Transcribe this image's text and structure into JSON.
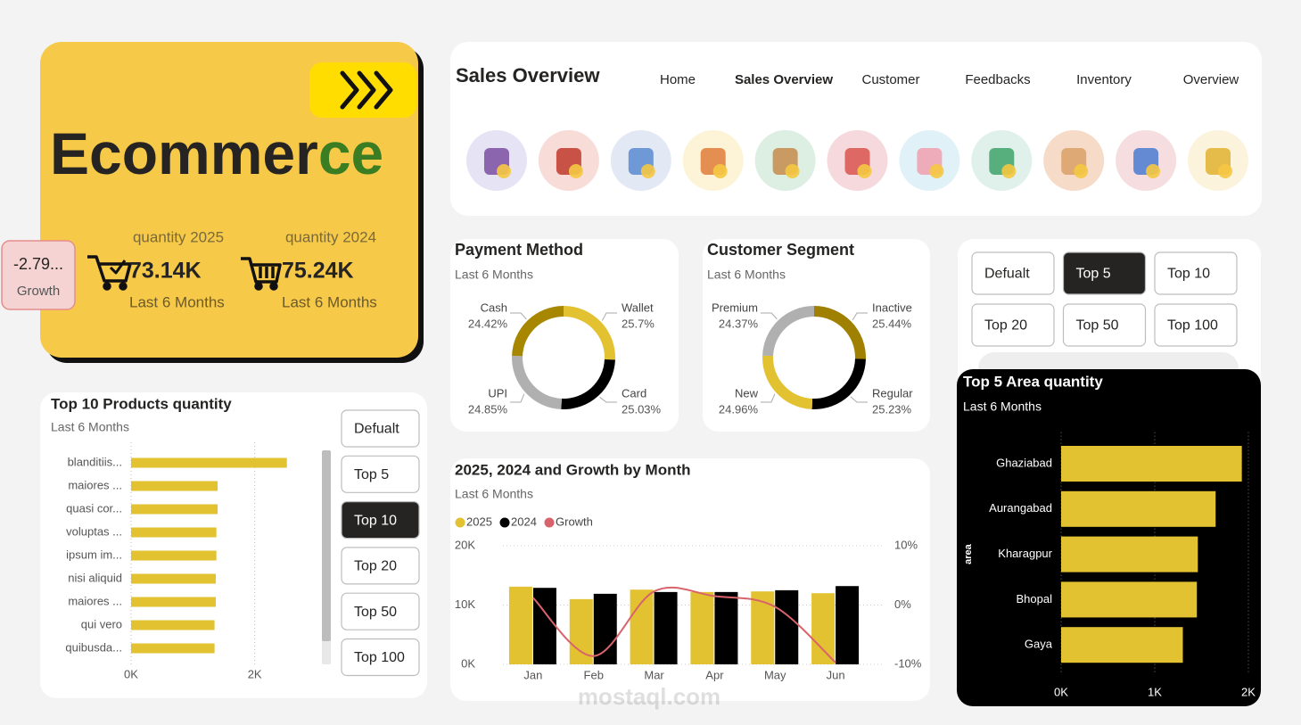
{
  "banner": {
    "title_parts": [
      "Ecommer",
      "ce"
    ]
  },
  "kpis": {
    "growth": {
      "value": "-2.79...",
      "label": "Growth"
    },
    "cards": [
      {
        "label": "quantity 2025",
        "value": "73.14K",
        "period": "Last 6 Months"
      },
      {
        "label": "quantity 2024",
        "value": "75.24K",
        "period": "Last 6 Months"
      }
    ]
  },
  "nav": {
    "title": "Sales Overview",
    "items": [
      "Home",
      "Sales Overview",
      "Customer",
      "Feedbacks",
      "Inventory",
      "Overview"
    ],
    "active": 1
  },
  "filters": {
    "area": {
      "options": [
        "Defualt",
        "Top 5",
        "Top 10",
        "Top 20",
        "Top 50",
        "Top 100"
      ],
      "active": 1
    },
    "products": {
      "options": [
        "Defualt",
        "Top 5",
        "Top 10",
        "Top 20",
        "Top 50",
        "Top 100"
      ],
      "active": 2
    }
  },
  "watermark": "mostaql.com",
  "chart_data": [
    {
      "type": "pie",
      "title": "Payment Method",
      "subtitle": "Last 6 Months",
      "categories": [
        "Wallet",
        "Card",
        "UPI",
        "Cash"
      ],
      "values": [
        25.7,
        25.03,
        24.85,
        24.42
      ],
      "value_labels": [
        "25.7%",
        "25.03%",
        "24.85%",
        "24.42%"
      ],
      "colors": [
        "#e3c232",
        "#000000",
        "#b0b0b0",
        "#a88700"
      ]
    },
    {
      "type": "pie",
      "title": "Customer Segment",
      "subtitle": "Last 6 Months",
      "categories": [
        "Inactive",
        "Regular",
        "New",
        "Premium"
      ],
      "values": [
        25.44,
        25.23,
        24.96,
        24.37
      ],
      "value_labels": [
        "25.44%",
        "25.23%",
        "24.96%",
        "24.37%"
      ],
      "colors": [
        "#a08000",
        "#000000",
        "#e3c232",
        "#b0b0b0"
      ]
    },
    {
      "type": "bar",
      "title": "2025, 2024 and Growth by Month",
      "subtitle": "Last 6 Months",
      "categories": [
        "Jan",
        "Feb",
        "Mar",
        "Apr",
        "May",
        "Jun"
      ],
      "series": [
        {
          "name": "2025",
          "color": "#e3c232",
          "values": [
            13100,
            11000,
            12600,
            12200,
            12300,
            12000
          ]
        },
        {
          "name": "2024",
          "color": "#000000",
          "values": [
            12900,
            11900,
            12200,
            12200,
            12500,
            13200
          ]
        },
        {
          "name": "Growth",
          "color": "#d9636b",
          "type": "line",
          "axis": "y2",
          "values": [
            1.2,
            -8.6,
            2.3,
            1.5,
            -0.3,
            -9.7
          ]
        }
      ],
      "ylim": [
        0,
        20000
      ],
      "yticks": [
        {
          "value": 0,
          "label": "0K"
        },
        {
          "value": 10000,
          "label": "10K"
        },
        {
          "value": 20000,
          "label": "20K"
        }
      ],
      "y2lim": [
        -10,
        10
      ],
      "y2ticks": [
        {
          "value": -10,
          "label": "-10%"
        },
        {
          "value": 0,
          "label": "0%"
        },
        {
          "value": 10,
          "label": "10%"
        }
      ],
      "grid": true
    },
    {
      "type": "hbar",
      "title": "Top 10 Products quantity",
      "subtitle": "Last 6 Months",
      "categories": [
        "blanditiis...",
        "maiores ...",
        "quasi cor...",
        "voluptas ...",
        "ipsum im...",
        "nisi aliquid",
        "maiores ...",
        "qui vero",
        "quibusda..."
      ],
      "values": [
        2520,
        1400,
        1400,
        1380,
        1380,
        1370,
        1370,
        1350,
        1350
      ],
      "color": "#e3c232",
      "xlim": [
        0,
        3000
      ],
      "xticks": [
        {
          "value": 0,
          "label": "0K"
        },
        {
          "value": 2000,
          "label": "2K"
        }
      ],
      "grid": true
    },
    {
      "type": "hbar",
      "title": "Top 5 Area quantity",
      "subtitle": "Last 6 Months",
      "ylabel": "area",
      "categories": [
        "Ghaziabad",
        "Aurangabad",
        "Kharagpur",
        "Bhopal",
        "Gaya"
      ],
      "values": [
        1930,
        1650,
        1460,
        1450,
        1300
      ],
      "color": "#e3c232",
      "xlim": [
        0,
        2000
      ],
      "xticks": [
        {
          "value": 0,
          "label": "0K"
        },
        {
          "value": 1000,
          "label": "1K"
        },
        {
          "value": 2000,
          "label": "2K"
        }
      ],
      "grid": true
    }
  ]
}
